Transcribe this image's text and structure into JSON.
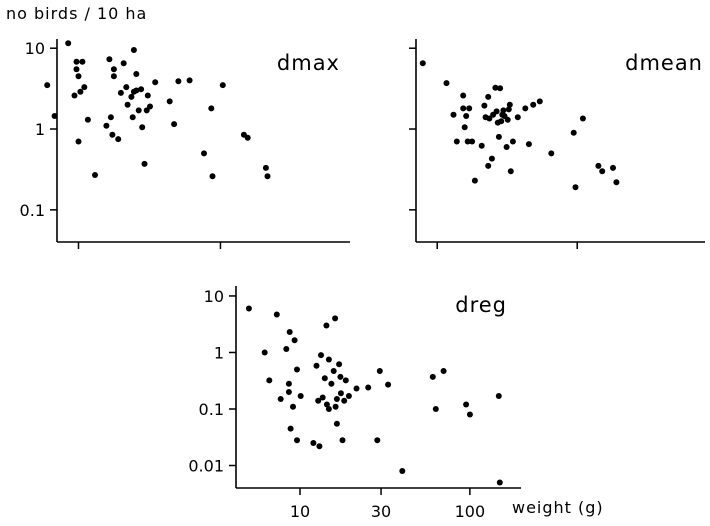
{
  "figure": {
    "ylabel": "no birds / 10 ha",
    "xlabel": "weight (g)"
  },
  "chart_data": [
    {
      "type": "scatter",
      "title": "dmax",
      "scale": {
        "x": "log",
        "y": "log"
      },
      "xlim": [
        2.5,
        30
      ],
      "ylim": [
        0.04,
        13
      ],
      "xticks": [
        {
          "value": 3,
          "label": ""
        },
        {
          "value": 10,
          "label": ""
        }
      ],
      "yticks": [
        {
          "value": 10,
          "label": "10"
        },
        {
          "value": 1,
          "label": "1"
        },
        {
          "value": 0.1,
          "label": "0.1"
        }
      ],
      "points": [
        [
          2.3,
          3.5
        ],
        [
          2.45,
          1.45
        ],
        [
          2.75,
          11.5
        ],
        [
          2.9,
          2.6
        ],
        [
          2.95,
          6.8
        ],
        [
          2.95,
          5.5
        ],
        [
          3.0,
          4.5
        ],
        [
          3.0,
          0.7
        ],
        [
          3.05,
          2.9
        ],
        [
          3.1,
          6.8
        ],
        [
          3.15,
          3.3
        ],
        [
          3.25,
          1.3
        ],
        [
          3.45,
          0.27
        ],
        [
          3.8,
          1.1
        ],
        [
          3.9,
          7.3
        ],
        [
          3.95,
          1.4
        ],
        [
          4.0,
          0.85
        ],
        [
          4.05,
          5.5
        ],
        [
          4.05,
          4.5
        ],
        [
          4.2,
          0.75
        ],
        [
          4.3,
          2.8
        ],
        [
          4.4,
          6.5
        ],
        [
          4.5,
          3.3
        ],
        [
          4.55,
          2.0
        ],
        [
          4.7,
          2.5
        ],
        [
          4.75,
          1.4
        ],
        [
          4.8,
          2.9
        ],
        [
          4.8,
          9.5
        ],
        [
          4.9,
          3.0
        ],
        [
          4.9,
          4.8
        ],
        [
          5.0,
          1.7
        ],
        [
          5.1,
          3.1
        ],
        [
          5.15,
          1.05
        ],
        [
          5.25,
          0.37
        ],
        [
          5.35,
          1.7
        ],
        [
          5.4,
          2.6
        ],
        [
          5.5,
          1.9
        ],
        [
          5.75,
          3.8
        ],
        [
          6.5,
          2.2
        ],
        [
          6.75,
          1.15
        ],
        [
          7.0,
          3.9
        ],
        [
          7.7,
          4.0
        ],
        [
          8.7,
          0.5
        ],
        [
          9.25,
          1.8
        ],
        [
          9.35,
          0.26
        ],
        [
          10.2,
          3.5
        ],
        [
          12.2,
          0.85
        ],
        [
          12.6,
          0.78
        ],
        [
          14.7,
          0.33
        ],
        [
          14.9,
          0.26
        ]
      ]
    },
    {
      "type": "scatter",
      "title": "dmean",
      "scale": {
        "x": "log",
        "y": "log"
      },
      "xlim": [
        2.5,
        30
      ],
      "ylim": [
        0.04,
        13
      ],
      "xticks": [
        {
          "value": 3,
          "label": ""
        },
        {
          "value": 10,
          "label": ""
        }
      ],
      "yticks": [
        {
          "value": 10,
          "label": ""
        },
        {
          "value": 1,
          "label": ""
        },
        {
          "value": 0.1,
          "label": ""
        }
      ],
      "points": [
        [
          2.65,
          6.5
        ],
        [
          3.25,
          3.7
        ],
        [
          3.45,
          1.5
        ],
        [
          3.55,
          0.7
        ],
        [
          3.75,
          2.6
        ],
        [
          3.75,
          1.8
        ],
        [
          3.8,
          1.05
        ],
        [
          3.85,
          1.45
        ],
        [
          3.9,
          0.7
        ],
        [
          3.95,
          1.8
        ],
        [
          4.05,
          0.7
        ],
        [
          4.15,
          0.23
        ],
        [
          4.4,
          0.62
        ],
        [
          4.5,
          1.95
        ],
        [
          4.55,
          1.4
        ],
        [
          4.65,
          2.5
        ],
        [
          4.65,
          0.35
        ],
        [
          4.7,
          1.35
        ],
        [
          4.8,
          0.43
        ],
        [
          4.85,
          1.5
        ],
        [
          4.95,
          3.25
        ],
        [
          5.0,
          1.65
        ],
        [
          5.05,
          1.2
        ],
        [
          5.1,
          0.8
        ],
        [
          5.15,
          3.2
        ],
        [
          5.2,
          1.25
        ],
        [
          5.25,
          1.5
        ],
        [
          5.3,
          1.7
        ],
        [
          5.35,
          1.45
        ],
        [
          5.45,
          0.6
        ],
        [
          5.5,
          1.3
        ],
        [
          5.55,
          1.75
        ],
        [
          5.6,
          2.0
        ],
        [
          5.65,
          0.3
        ],
        [
          5.75,
          0.7
        ],
        [
          6.0,
          1.4
        ],
        [
          6.4,
          1.8
        ],
        [
          6.6,
          0.65
        ],
        [
          6.85,
          2.0
        ],
        [
          7.25,
          2.2
        ],
        [
          8.0,
          0.5
        ],
        [
          9.7,
          0.9
        ],
        [
          9.85,
          0.19
        ],
        [
          10.5,
          1.35
        ],
        [
          12.0,
          0.35
        ],
        [
          12.4,
          0.3
        ],
        [
          13.6,
          0.33
        ],
        [
          14.0,
          0.22
        ]
      ]
    },
    {
      "type": "scatter",
      "title": "dreg",
      "scale": {
        "x": "log",
        "y": "log"
      },
      "xlim": [
        4.2,
        200
      ],
      "ylim": [
        0.004,
        15
      ],
      "xticks": [
        {
          "value": 10,
          "label": "10"
        },
        {
          "value": 30,
          "label": "30"
        },
        {
          "value": 100,
          "label": "100"
        }
      ],
      "yticks": [
        {
          "value": 10,
          "label": "10"
        },
        {
          "value": 1,
          "label": "1"
        },
        {
          "value": 0.1,
          "label": "0.1"
        },
        {
          "value": 0.01,
          "label": "0.01"
        }
      ],
      "points": [
        [
          5.0,
          6.0
        ],
        [
          6.2,
          1.0
        ],
        [
          6.6,
          0.32
        ],
        [
          7.3,
          4.7
        ],
        [
          7.7,
          0.15
        ],
        [
          8.3,
          1.15
        ],
        [
          8.6,
          0.28
        ],
        [
          8.6,
          0.2
        ],
        [
          8.7,
          2.3
        ],
        [
          8.8,
          0.045
        ],
        [
          9.1,
          0.11
        ],
        [
          9.3,
          1.65
        ],
        [
          9.6,
          0.5
        ],
        [
          9.6,
          0.028
        ],
        [
          10.1,
          0.17
        ],
        [
          12.0,
          0.025
        ],
        [
          12.5,
          0.58
        ],
        [
          12.8,
          0.14
        ],
        [
          13.0,
          0.022
        ],
        [
          13.3,
          0.9
        ],
        [
          13.6,
          0.16
        ],
        [
          14.0,
          0.35
        ],
        [
          14.3,
          3.0
        ],
        [
          14.4,
          0.12
        ],
        [
          14.8,
          0.75
        ],
        [
          14.8,
          0.1
        ],
        [
          15.3,
          0.28
        ],
        [
          15.8,
          0.47
        ],
        [
          16.1,
          4.0
        ],
        [
          16.2,
          0.11
        ],
        [
          16.5,
          0.15
        ],
        [
          16.5,
          0.055
        ],
        [
          17.0,
          0.62
        ],
        [
          17.3,
          0.37
        ],
        [
          17.4,
          0.19
        ],
        [
          17.8,
          0.028
        ],
        [
          18.2,
          0.14
        ],
        [
          18.6,
          0.32
        ],
        [
          19.4,
          0.17
        ],
        [
          21.5,
          0.23
        ],
        [
          25.2,
          0.24
        ],
        [
          28.5,
          0.028
        ],
        [
          29.5,
          0.47
        ],
        [
          33.0,
          0.27
        ],
        [
          40.0,
          0.008
        ],
        [
          60.5,
          0.37
        ],
        [
          63.0,
          0.1
        ],
        [
          70.0,
          0.47
        ],
        [
          95.0,
          0.12
        ],
        [
          100.0,
          0.08
        ],
        [
          148.0,
          0.17
        ],
        [
          150.0,
          0.005
        ]
      ]
    }
  ]
}
